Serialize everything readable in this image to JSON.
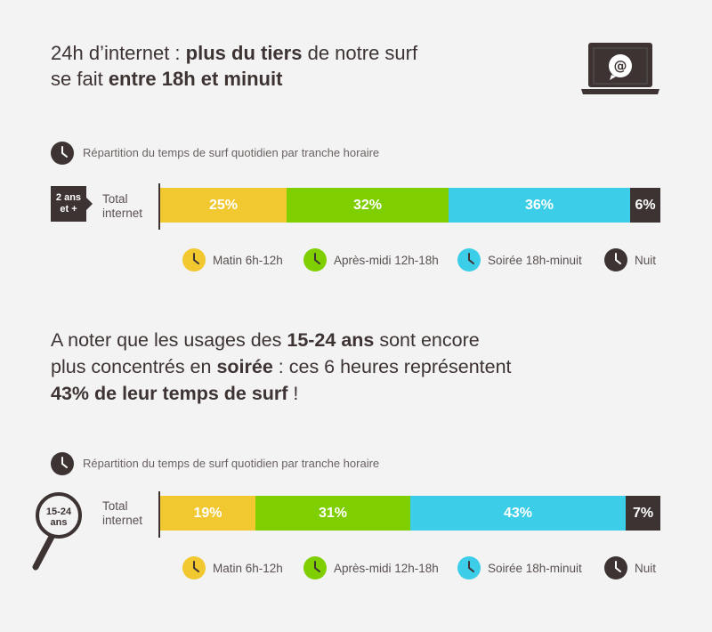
{
  "headline1": {
    "line1_a": "24h d’internet : ",
    "line1_b": "plus du tiers",
    "line1_c": " de notre surf",
    "line2_a": "se fait ",
    "line2_b": "entre 18h et minuit"
  },
  "headline2": {
    "line1_a": "A noter que les usages des ",
    "line1_b": "15-24 ans",
    "line1_c": " sont encore",
    "line2_a": "plus concentrés en ",
    "line2_b": "soirée",
    "line2_c": " : ces 6 heures représentent",
    "line3_a": "43% de leur temps de surf",
    "line3_b": " !"
  },
  "colors": {
    "matin": "#f1c830",
    "apres_midi": "#7fcf00",
    "soiree": "#3ccde8",
    "nuit": "#3d3333",
    "text": "#3d3333"
  },
  "icons": [
    "laptop-email-icon",
    "clock-icon",
    "magnifier-icon"
  ],
  "chart_data": [
    {
      "type": "bar",
      "orientation": "horizontal-stacked",
      "title": "Répartition du temps de surf quotidien par tranche horaire",
      "group_tag": "2 ans et +",
      "row_label_line1": "Total",
      "row_label_line2": "internet",
      "series": [
        {
          "name": "Matin 6h-12h",
          "value": 25,
          "label": "25%",
          "color": "#f1c830"
        },
        {
          "name": "Après-midi 12h-18h",
          "value": 32,
          "label": "32%",
          "color": "#7fcf00"
        },
        {
          "name": "Soirée 18h-minuit",
          "value": 36,
          "label": "36%",
          "color": "#3ccde8"
        },
        {
          "name": "Nuit",
          "value": 6,
          "label": "6%",
          "color": "#3d3333"
        }
      ]
    },
    {
      "type": "bar",
      "orientation": "horizontal-stacked",
      "title": "Répartition du temps de surf quotidien par tranche horaire",
      "group_tag_line1": "15-24",
      "group_tag_line2": "ans",
      "row_label_line1": "Total",
      "row_label_line2": "internet",
      "series": [
        {
          "name": "Matin 6h-12h",
          "value": 19,
          "label": "19%",
          "color": "#f1c830"
        },
        {
          "name": "Après-midi 12h-18h",
          "value": 31,
          "label": "31%",
          "color": "#7fcf00"
        },
        {
          "name": "Soirée 18h-minuit",
          "value": 43,
          "label": "43%",
          "color": "#3ccde8"
        },
        {
          "name": "Nuit",
          "value": 7,
          "label": "7%",
          "color": "#3d3333"
        }
      ]
    }
  ],
  "legend": [
    {
      "label": "Matin 6h-12h",
      "color": "#f1c830"
    },
    {
      "label": "Après-midi 12h-18h",
      "color": "#7fcf00"
    },
    {
      "label": "Soirée 18h-minuit",
      "color": "#3ccde8"
    },
    {
      "label": "Nuit",
      "color": "#3d3333"
    }
  ]
}
